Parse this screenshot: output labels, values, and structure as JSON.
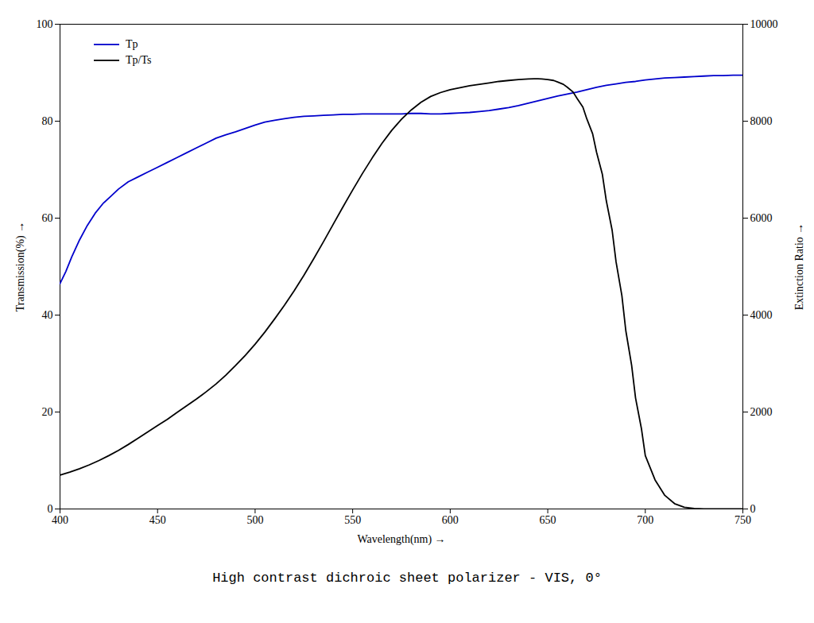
{
  "chart_data": {
    "type": "line",
    "title": "High contrast dichroic sheet polarizer - VIS, 0°",
    "xlabel": "Wavelength(nm)",
    "ylabel": "Transmission(%)",
    "y2label": "Extinction Ratio",
    "xlim": [
      400,
      750
    ],
    "ylim": [
      0,
      100
    ],
    "y2lim": [
      0,
      10000
    ],
    "xticks": [
      400,
      450,
      500,
      550,
      600,
      650,
      700,
      750
    ],
    "yticks": [
      0,
      20,
      40,
      60,
      80,
      100
    ],
    "y2ticks": [
      0,
      2000,
      4000,
      6000,
      8000,
      10000
    ],
    "legend": "upper left",
    "series": [
      {
        "name": "Tp",
        "color": "#0000cc",
        "x": [
          400,
          403,
          406,
          410,
          414,
          418,
          422,
          426,
          430,
          435,
          440,
          445,
          450,
          455,
          460,
          465,
          470,
          475,
          480,
          485,
          490,
          495,
          500,
          505,
          510,
          515,
          520,
          525,
          530,
          535,
          540,
          545,
          550,
          555,
          560,
          565,
          570,
          575,
          580,
          585,
          590,
          595,
          600,
          605,
          610,
          615,
          620,
          625,
          630,
          635,
          640,
          645,
          650,
          655,
          660,
          665,
          670,
          675,
          680,
          685,
          690,
          695,
          700,
          705,
          710,
          715,
          720,
          725,
          730,
          735,
          740,
          745,
          750
        ],
        "values": [
          46.5,
          49,
          52,
          55.5,
          58.5,
          61,
          63,
          64.5,
          66,
          67.5,
          68.5,
          69.5,
          70.5,
          71.5,
          72.5,
          73.5,
          74.5,
          75.5,
          76.5,
          77.2,
          77.8,
          78.5,
          79.2,
          79.8,
          80.2,
          80.5,
          80.8,
          81.0,
          81.1,
          81.2,
          81.3,
          81.4,
          81.4,
          81.5,
          81.5,
          81.5,
          81.5,
          81.5,
          81.6,
          81.6,
          81.5,
          81.5,
          81.6,
          81.7,
          81.8,
          82.0,
          82.2,
          82.5,
          82.8,
          83.2,
          83.7,
          84.2,
          84.7,
          85.2,
          85.6,
          86.0,
          86.5,
          87.0,
          87.4,
          87.7,
          88.0,
          88.2,
          88.5,
          88.7,
          88.9,
          89.0,
          89.1,
          89.2,
          89.3,
          89.4,
          89.4,
          89.5,
          89.5
        ]
      },
      {
        "name": "Tp/Ts",
        "color": "#000000",
        "axis": "y2",
        "x": [
          400,
          405,
          410,
          415,
          420,
          425,
          430,
          435,
          440,
          445,
          450,
          455,
          460,
          465,
          470,
          475,
          480,
          485,
          490,
          495,
          500,
          505,
          510,
          515,
          520,
          525,
          530,
          535,
          540,
          545,
          550,
          555,
          560,
          565,
          570,
          575,
          580,
          585,
          590,
          595,
          600,
          605,
          610,
          615,
          620,
          625,
          630,
          635,
          640,
          643,
          645,
          647,
          650,
          653,
          655,
          658,
          660,
          663,
          665,
          668,
          670,
          673,
          675,
          678,
          680,
          683,
          685,
          688,
          690,
          693,
          695,
          698,
          700,
          705,
          710,
          715,
          720,
          725,
          730,
          735,
          740,
          745,
          750
        ],
        "values": [
          700,
          760,
          830,
          910,
          1000,
          1100,
          1210,
          1330,
          1460,
          1590,
          1720,
          1850,
          1990,
          2130,
          2270,
          2420,
          2580,
          2760,
          2960,
          3170,
          3400,
          3650,
          3920,
          4200,
          4500,
          4820,
          5160,
          5510,
          5870,
          6230,
          6580,
          6920,
          7240,
          7540,
          7810,
          8040,
          8230,
          8390,
          8510,
          8590,
          8650,
          8690,
          8730,
          8760,
          8790,
          8820,
          8840,
          8860,
          8870,
          8875,
          8875,
          8870,
          8860,
          8840,
          8810,
          8760,
          8700,
          8600,
          8470,
          8290,
          8050,
          7740,
          7360,
          6900,
          6360,
          5750,
          5100,
          4400,
          3680,
          2960,
          2290,
          1660,
          1100,
          600,
          280,
          110,
          35,
          10,
          3,
          1,
          0,
          0,
          0
        ]
      }
    ]
  }
}
